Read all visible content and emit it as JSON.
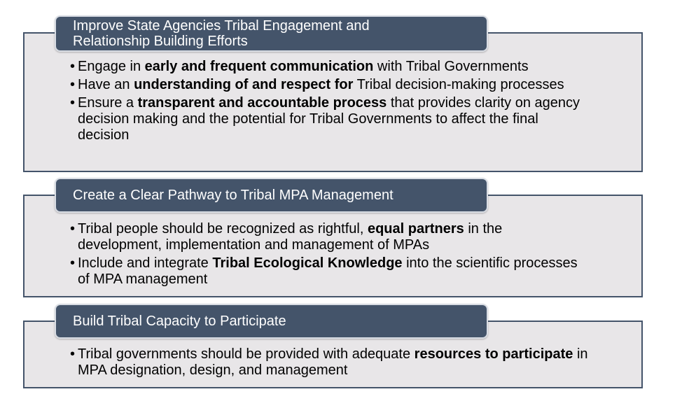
{
  "sections": [
    {
      "header": {
        "line1": "Improve State Agencies Tribal Engagement and",
        "line2": "Relationship Building Efforts"
      },
      "bullets": [
        {
          "pre": "Engage in ",
          "bold": "early and frequent communication",
          "post": " with Tribal Governments"
        },
        {
          "pre": "Have an ",
          "bold": "understanding of and respect for",
          "post": " Tribal decision-making processes"
        },
        {
          "pre": "Ensure a ",
          "bold": "transparent and accountable process",
          "post": " that provides clarity on agency decision making and the potential for Tribal Governments to affect the final decision"
        }
      ]
    },
    {
      "header": {
        "line1": "Create a Clear Pathway to Tribal MPA Management"
      },
      "bullets": [
        {
          "pre": "Tribal people should be recognized as rightful, ",
          "bold": "equal partners",
          "post": " in the development, implementation and management of MPAs"
        },
        {
          "pre": "Include and integrate ",
          "bold": "Tribal Ecological Knowledge",
          "post": " into the scientific processes of MPA management"
        }
      ]
    },
    {
      "header": {
        "line1": "Build Tribal Capacity to Participate"
      },
      "bullets": [
        {
          "pre": "Tribal governments should be provided with adequate ",
          "bold": "resources to participate",
          "post": " in MPA designation, design, and management"
        }
      ]
    }
  ],
  "bullet_char": "•",
  "colors": {
    "header_fill": "#44546a",
    "box_fill": "#e8e6e8",
    "box_border": "#44546a"
  }
}
